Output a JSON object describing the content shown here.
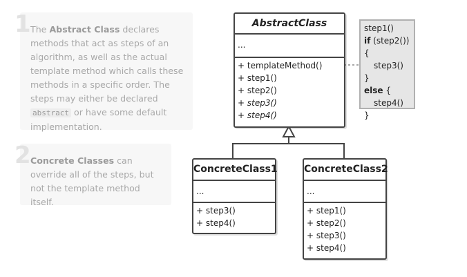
{
  "notes": [
    {
      "number": "1",
      "parts": {
        "p1": "The ",
        "b1": "Abstract Class",
        "p2": " declares methods that act as steps of an algorithm, as well as the actual template method which calls these methods in a specific order. The steps may either be declared ",
        "code": "abstract",
        "p3": " or have some default implementation."
      }
    },
    {
      "number": "2",
      "parts": {
        "b1": "Concrete Classes",
        "p1": " can override all of the steps, but not the template method itself."
      }
    }
  ],
  "abstract_class": {
    "name": "AbstractClass",
    "fields": "...",
    "methods": [
      "+ templateMethod()",
      "+ step1()",
      "+ step2()",
      "+ step3()",
      "+ step4()"
    ]
  },
  "concrete_class1": {
    "name": "ConcreteClass1",
    "fields": "...",
    "methods": [
      "+ step3()",
      "+ step4()"
    ]
  },
  "concrete_class2": {
    "name": "ConcreteClass2",
    "fields": "...",
    "methods": [
      "+ step1()",
      "+ step2()",
      "+ step3()",
      "+ step4()"
    ]
  },
  "code_note": {
    "l1": "step1()",
    "l2_kw": "if",
    "l2_rest": " (step2()) {",
    "l3": "step3()",
    "l4": "}",
    "l5_kw": "else",
    "l5_rest": " {",
    "l6": "step4()",
    "l7": "}"
  },
  "colors": {
    "border": "#444444",
    "note_bg": "#f7f7f7",
    "note_text": "#a8a8a8",
    "code_note_bg": "#e6e6e6"
  }
}
